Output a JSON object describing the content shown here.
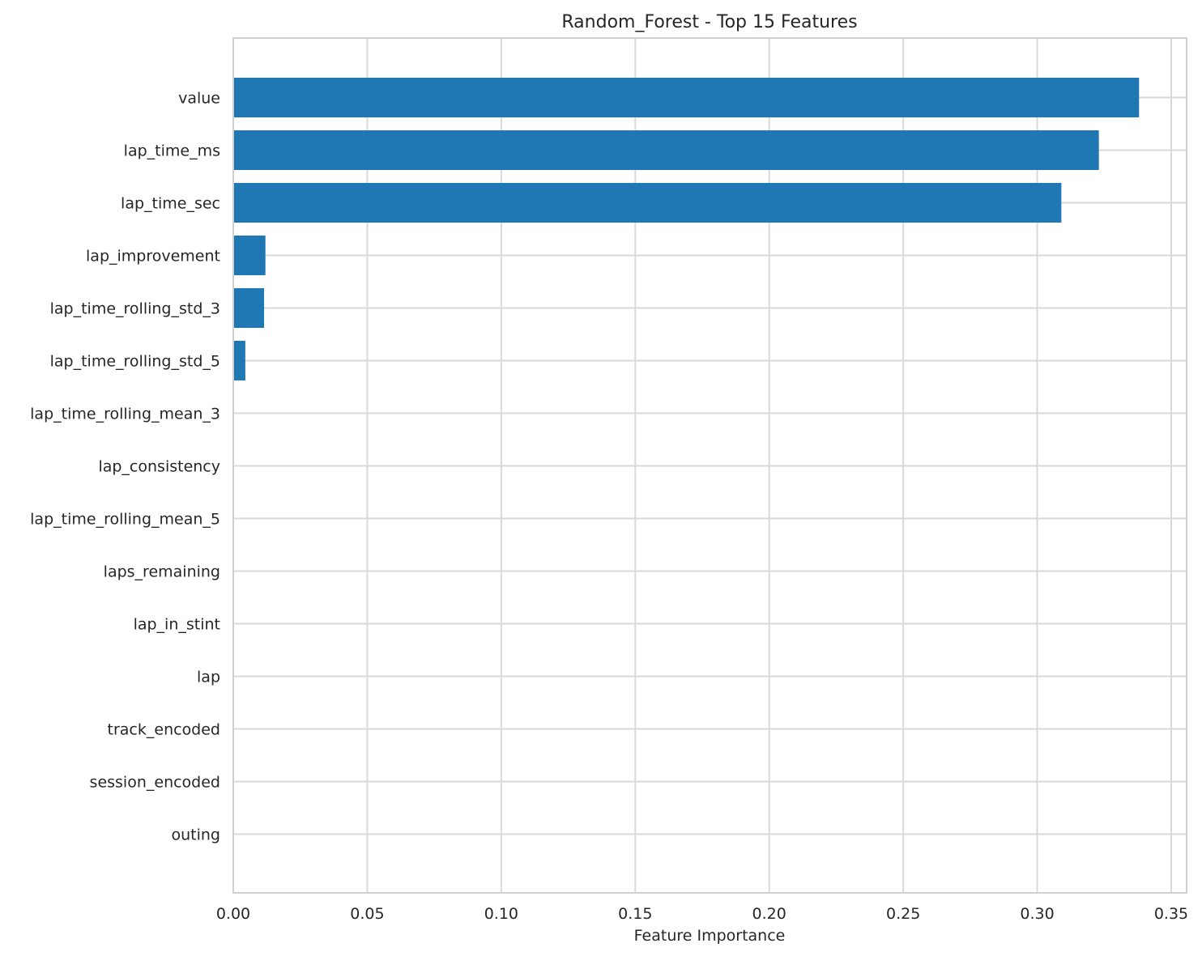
{
  "chart_data": {
    "type": "bar",
    "orientation": "horizontal",
    "title": "Random_Forest - Top 15 Features",
    "xlabel": "Feature Importance",
    "ylabel": "",
    "xlim": [
      0,
      0.355
    ],
    "xticks": [
      0.0,
      0.05,
      0.1,
      0.15,
      0.2,
      0.25,
      0.3,
      0.35
    ],
    "xtick_labels": [
      "0.00",
      "0.05",
      "0.10",
      "0.15",
      "0.20",
      "0.25",
      "0.30",
      "0.35"
    ],
    "grid": true,
    "bar_color": "#1f77b4",
    "categories": [
      "value",
      "lap_time_ms",
      "lap_time_sec",
      "lap_improvement",
      "lap_time_rolling_std_3",
      "lap_time_rolling_std_5",
      "lap_time_rolling_mean_3",
      "lap_consistency",
      "lap_time_rolling_mean_5",
      "laps_remaining",
      "lap_in_stint",
      "lap",
      "track_encoded",
      "session_encoded",
      "outing"
    ],
    "values": [
      0.338,
      0.323,
      0.309,
      0.012,
      0.0115,
      0.0045,
      0.0001,
      0.0001,
      0.0001,
      0.0,
      0.0,
      0.0,
      0.0,
      0.0,
      0.0
    ]
  }
}
